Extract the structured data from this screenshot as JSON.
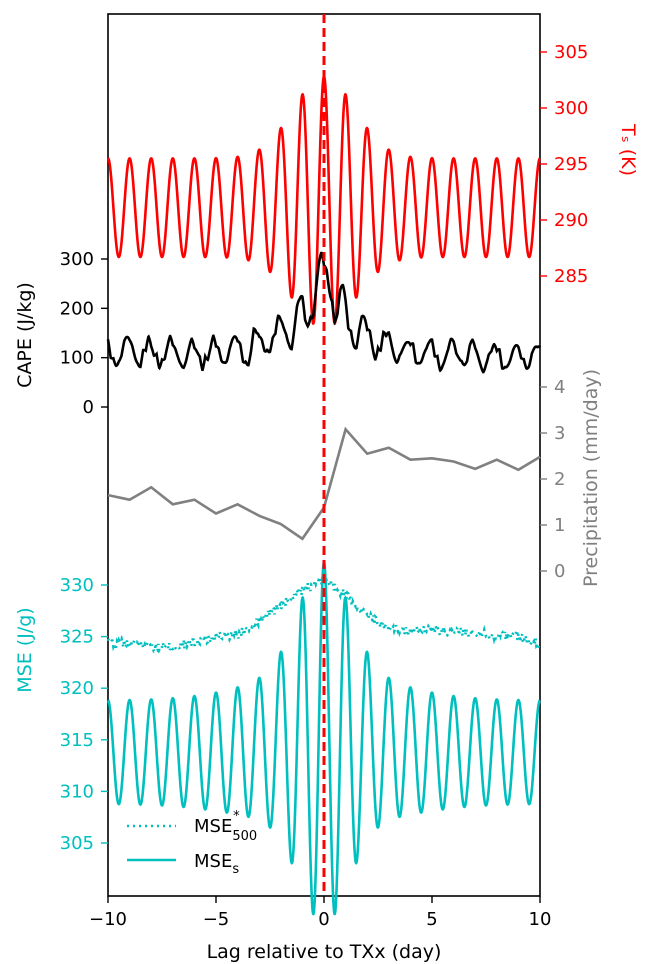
{
  "chart_data": {
    "type": "line",
    "xlabel": "Lag relative to TXx (day)",
    "xlim": [
      -10,
      10
    ],
    "x_ticks": [
      -10,
      -5,
      0,
      5,
      10
    ],
    "x_tick_labels": [
      "−10",
      "−5",
      "0",
      "5",
      "10"
    ],
    "vline": {
      "x": 0,
      "style": "dashed",
      "color": "#ff0000"
    },
    "panels": [
      {
        "id": "ts",
        "ylabel": "Tₛ (K)",
        "color": "#ff0000",
        "axis_side": "right",
        "ylim": [
          283,
          308
        ],
        "ticks": [
          285,
          290,
          295,
          300,
          305
        ],
        "series": [
          {
            "name": "Ts",
            "style": "solid",
            "color": "#ff0000",
            "mean": 291.1,
            "diurnal_amplitude": 4.4,
            "peak": 305.0
          }
        ]
      },
      {
        "id": "cape",
        "ylabel": "CAPE (J/kg)",
        "color": "#000000",
        "axis_side": "left",
        "ylim": [
          0,
          300
        ],
        "ticks": [
          0,
          100,
          200,
          300
        ],
        "series": [
          {
            "name": "CAPE",
            "style": "solid",
            "color": "#000000",
            "x": [
              -10,
              -9,
              -8,
              -7,
              -6,
              -5,
              -4,
              -3,
              -2,
              -1,
              -0.5,
              0,
              0.5,
              1,
              2,
              3,
              4,
              5,
              6,
              7,
              8,
              9,
              10
            ],
            "mean": [
              105,
              108,
              110,
              112,
              110,
              112,
              118,
              130,
              145,
              175,
              230,
              255,
              230,
              175,
              140,
              125,
              115,
              110,
              105,
              105,
              103,
              105,
              110
            ],
            "amplitude": [
              35,
              30,
              32,
              30,
              32,
              30,
              35,
              40,
              40,
              50,
              55,
              60,
              55,
              50,
              40,
              35,
              32,
              30,
              30,
              28,
              30,
              30,
              30
            ]
          }
        ]
      },
      {
        "id": "precip",
        "ylabel": "Precipitation (mm/day)",
        "color": "#808080",
        "axis_side": "right",
        "ylim": [
          0,
          4
        ],
        "ticks": [
          0,
          1,
          2,
          3,
          4
        ],
        "series": [
          {
            "name": "Precipitation",
            "style": "solid",
            "color": "#808080",
            "x": [
              -10,
              -9,
              -8,
              -7,
              -6,
              -5,
              -4,
              -3,
              -2,
              -1,
              0,
              1,
              2,
              3,
              4,
              5,
              6,
              7,
              8,
              9,
              10
            ],
            "values": [
              1.65,
              1.55,
              1.82,
              1.45,
              1.55,
              1.25,
              1.45,
              1.2,
              1.02,
              0.7,
              1.38,
              3.08,
              2.55,
              2.68,
              2.42,
              2.45,
              2.38,
              2.22,
              2.42,
              2.2,
              2.48
            ]
          }
        ]
      },
      {
        "id": "mse",
        "ylabel": "MSE (J/g)",
        "color": "#00bfbf",
        "axis_side": "left",
        "ylim": [
          300,
          333
        ],
        "ticks": [
          305,
          310,
          315,
          320,
          325,
          330
        ],
        "series": [
          {
            "name": "MSE*500",
            "style": "dotted",
            "color": "#00bfbf",
            "x": [
              -10,
              -9,
              -8,
              -7,
              -6,
              -5,
              -4,
              -3,
              -2,
              -1,
              0,
              1,
              2,
              3,
              4,
              5,
              6,
              7,
              8,
              9,
              10
            ],
            "mean": [
              324.5,
              324.3,
              324.0,
              324.0,
              324.5,
              325.0,
              325.2,
              326.5,
              328.0,
              329.5,
              330.5,
              329.0,
              327.0,
              325.8,
              325.5,
              325.6,
              325.5,
              325.3,
              325.1,
              325.0,
              324.3
            ]
          },
          {
            "name": "MSEs",
            "style": "solid",
            "color": "#00bfbf",
            "mean": 313.8,
            "diurnal_amplitude": 5.0,
            "peak": 330.2
          }
        ]
      }
    ],
    "legend": {
      "position": "lower-left",
      "entries": [
        {
          "label": "MSE",
          "sup": "*",
          "sub": "500",
          "style": "dotted"
        },
        {
          "label": "MSE",
          "sup": "",
          "sub": "s",
          "style": "solid"
        }
      ]
    }
  }
}
